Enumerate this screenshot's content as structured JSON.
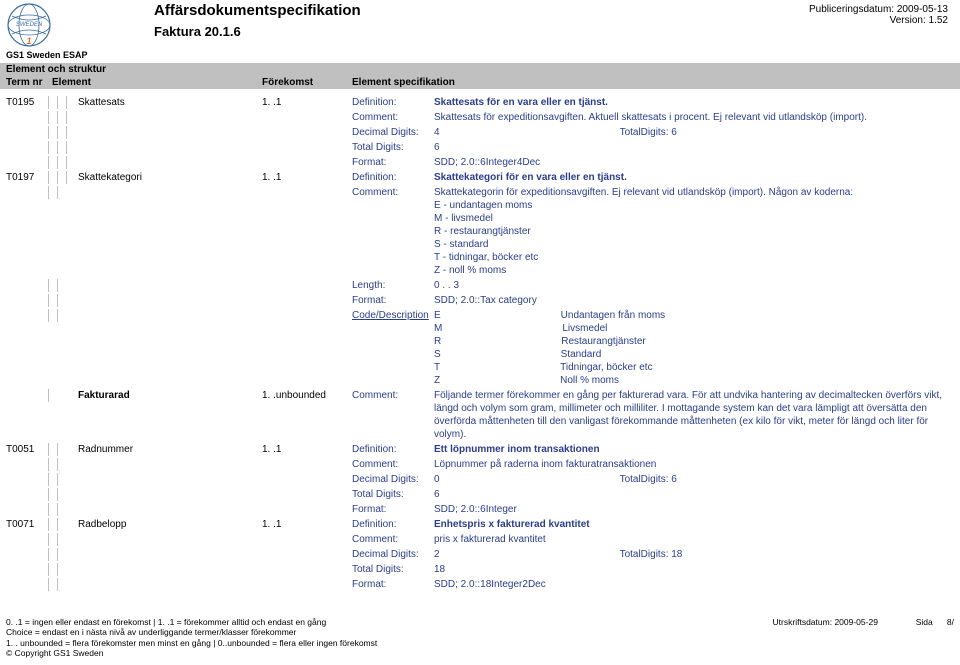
{
  "header": {
    "title": "Affärsdokumentspecifikation",
    "subtitle": "Faktura 20.1.6",
    "logo_text": "SWEDEN",
    "pubdate_label": "Publiceringsdatum:",
    "pubdate_value": "2009-05-13",
    "version_label": "Version:",
    "version_value": "1.52",
    "esap": "GS1 Sweden ESAP",
    "row1": "Element och struktur",
    "col_termnr": "Term nr",
    "col_element": "Element",
    "col_forekomst": "Förekomst",
    "col_spec": "Element specifikation"
  },
  "rows": {
    "t0195": {
      "term": "T0195",
      "el": "Skattesats",
      "for": "1. .1",
      "def": "Skattesats för en vara eller en tjänst.",
      "com": "Skattesats för expeditionsavgiften. Aktuell skattesats i procent. Ej relevant vid utlandsköp (import).",
      "dec": "4",
      "totd": "TotalDigits: 6",
      "td": "6",
      "fmt": "SDD; 2.0::6Integer4Dec"
    },
    "t0197": {
      "term": "T0197",
      "el": "Skattekategori",
      "for": "1. .1",
      "def": "Skattekategori för en vara eller en tjänst.",
      "com": "Skattekategorin för expeditionsavgiften. Ej relevant vid utlandsköp (import). Någon av koderna:\nE - undantagen moms\nM - livsmedel\nR - restaurangtjänster\nS - standard\nT - tidningar, böcker etc\nZ - noll % moms",
      "len": "0 . .  3",
      "fmt": "SDD; 2.0::Tax category",
      "codes": [
        [
          "E",
          "Undantagen från moms"
        ],
        [
          "M",
          "Livsmedel"
        ],
        [
          "R",
          "Restaurangtjänster"
        ],
        [
          "S",
          "Standard"
        ],
        [
          "T",
          "Tidningar, böcker etc"
        ],
        [
          "Z",
          "Noll % moms"
        ]
      ]
    },
    "fakturarad": {
      "el": "Fakturarad",
      "for": "1. .unbounded",
      "com": "Följande termer förekommer en gång per fakturerad vara. För att undvika hantering av decimaltecken överförs vikt, längd och volym som gram, millimeter och milliliter. I mottagande system kan det vara lämpligt att översätta den överförda måttenheten till den vanligast förekommande måttenheten (ex kilo för vikt, meter för längd och liter för volym)."
    },
    "t0051": {
      "term": "T0051",
      "el": "Radnummer",
      "for": "1. .1",
      "def": "Ett löpnummer inom transaktionen",
      "com": "Löpnummer på raderna inom fakturatransaktionen",
      "dec": "0",
      "totd": "TotalDigits: 6",
      "td": "6",
      "fmt": "SDD; 2.0::6Integer"
    },
    "t0071": {
      "term": "T0071",
      "el": "Radbelopp",
      "for": "1. .1",
      "def": " Enhetspris x fakturerad kvantitet",
      "com": "pris x fakturerad kvantitet",
      "dec": "2",
      "totd": "TotalDigits: 18",
      "td": "18",
      "fmt": "SDD; 2.0::18Integer2Dec"
    }
  },
  "labels": {
    "def": "Definition:",
    "com": "Comment:",
    "dec": "Decimal Digits:",
    "totd": "Total Digits:",
    "fmt": "Format:",
    "len": "Length:",
    "cd": "Code/Description"
  },
  "footer": {
    "l1": "0. .1 = ingen eller endast en förekomst | 1. .1 = förekommer alltid och endast en gång",
    "l2": "Choice = endast en i nästa nivå av underliggande termer/klasser förekommer",
    "l3": "1. . unbounded = flera förekomster men minst en gång | 0..unbounded = flera eller ingen förekomst",
    "l4": "© Copyright GS1 Sweden",
    "r1_label": "Utrskriftsdatum:",
    "r1_val": "2009-05-29",
    "r2_label": "Sida",
    "r2_val": "8/"
  },
  "colors": {
    "accent": "#2a3d8f",
    "grey": "#c0c0c0"
  }
}
